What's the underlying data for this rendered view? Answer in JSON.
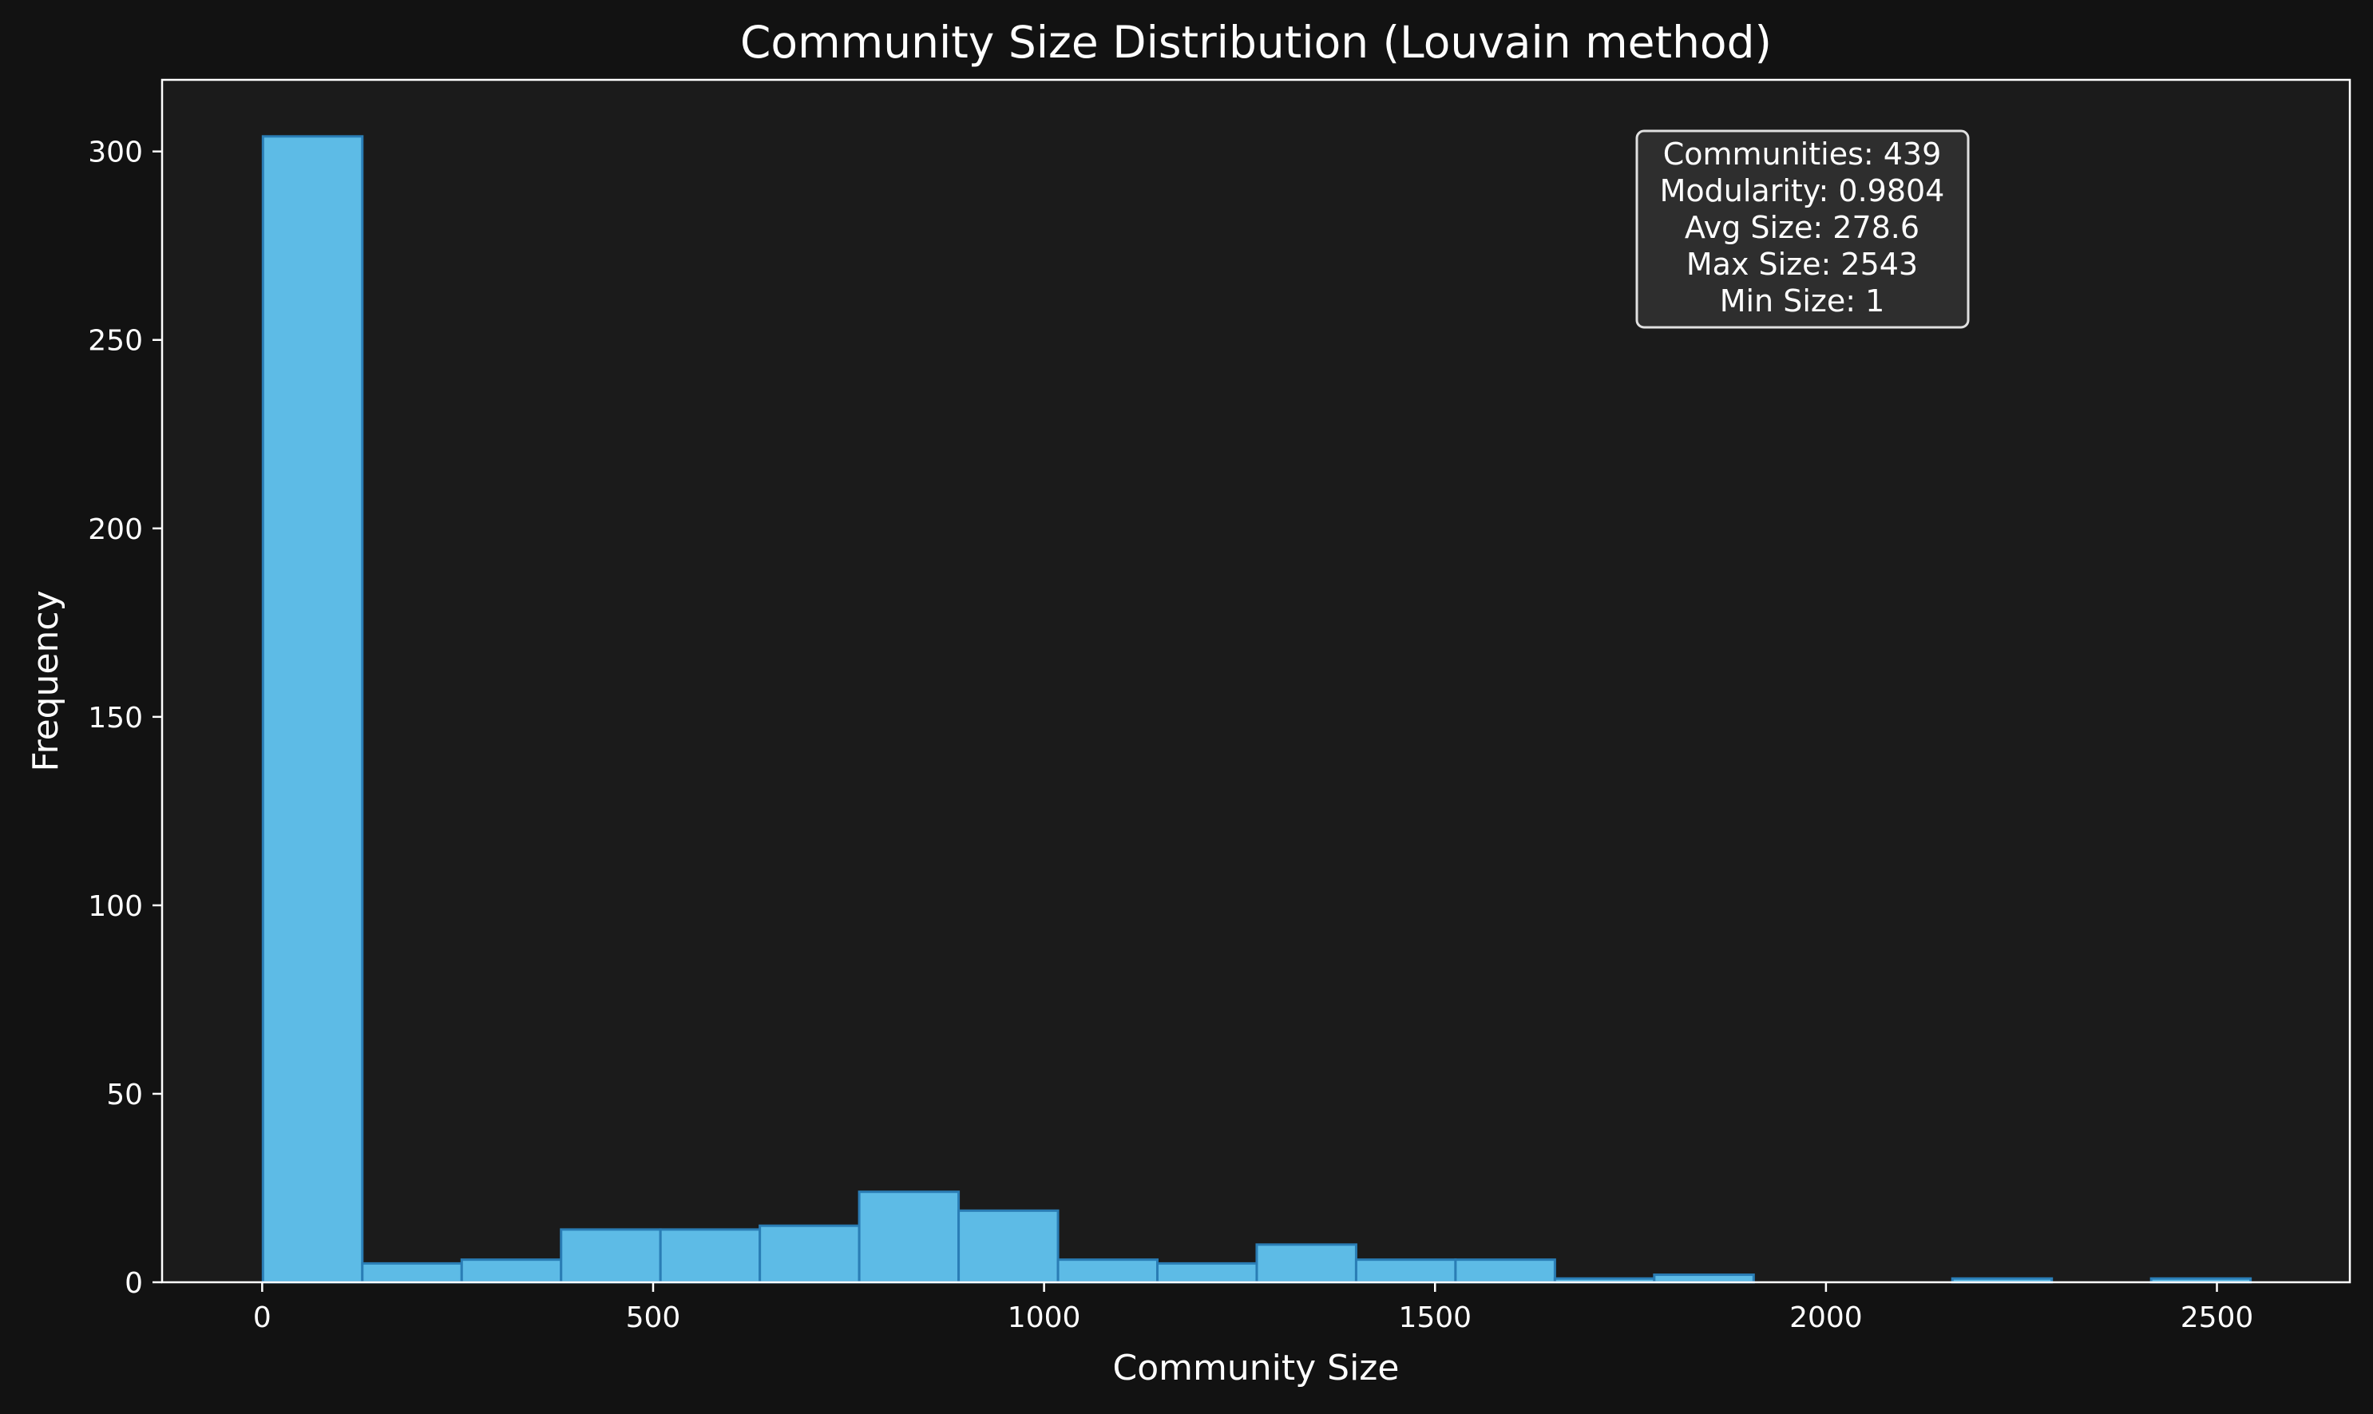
{
  "chart_data": {
    "type": "bar",
    "title": "Community Size Distribution (Louvain method)",
    "xlabel": "Community Size",
    "ylabel": "Frequency",
    "xlim": [
      -128,
      2670
    ],
    "ylim": [
      0,
      319
    ],
    "xticks": [
      0,
      500,
      1000,
      1500,
      2000,
      2500
    ],
    "yticks": [
      0,
      50,
      100,
      150,
      200,
      250,
      300
    ],
    "bin_edges": [
      1,
      128.1,
      255.2,
      382.3,
      509.4,
      636.5,
      763.6,
      890.7,
      1017.8,
      1144.9,
      1272,
      1399.1,
      1526.2,
      1653.3,
      1780.4,
      1907.5,
      2034.6,
      2161.7,
      2288.8,
      2415.9,
      2543
    ],
    "values": [
      304,
      5,
      6,
      14,
      14,
      15,
      24,
      19,
      6,
      5,
      10,
      6,
      6,
      1,
      2,
      0,
      0,
      1,
      0,
      1
    ],
    "grid": false,
    "legend": false,
    "colors": {
      "background": "#121212",
      "plot_background": "#1b1b1b",
      "bar_fill": "#5dbbe6",
      "bar_edge": "#2a7db5",
      "text": "#ffffff",
      "stats_box_fill": "#2e2e2e",
      "stats_box_edge": "#e0e0e0"
    },
    "stats_box": {
      "position": "top-right",
      "lines": [
        "Communities: 439",
        "Modularity: 0.9804",
        "Avg Size: 278.6",
        "Max Size: 2543",
        "Min Size: 1"
      ]
    }
  }
}
